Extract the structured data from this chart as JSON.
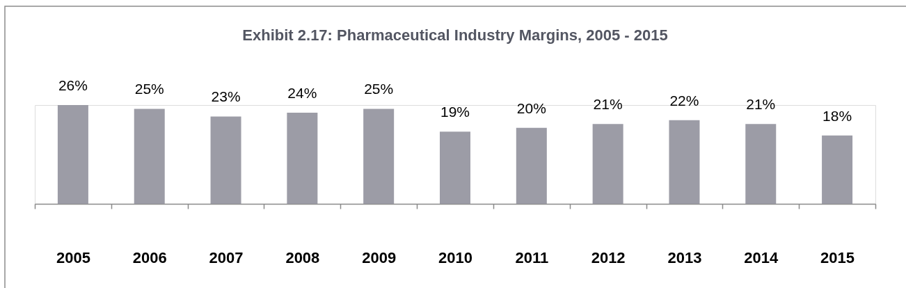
{
  "chart_data": {
    "type": "bar",
    "title": "Exhibit 2.17: Pharmaceutical Industry Margins,  2005 - 2015",
    "categories": [
      "2005",
      "2006",
      "2007",
      "2008",
      "2009",
      "2010",
      "2011",
      "2012",
      "2013",
      "2014",
      "2015"
    ],
    "values": [
      26,
      25,
      23,
      24,
      25,
      19,
      20,
      21,
      22,
      21,
      18
    ],
    "value_labels": [
      "26%",
      "25%",
      "23%",
      "24%",
      "25%",
      "19%",
      "20%",
      "21%",
      "22%",
      "21%",
      "18%"
    ],
    "color": "#9c9ca6"
  }
}
